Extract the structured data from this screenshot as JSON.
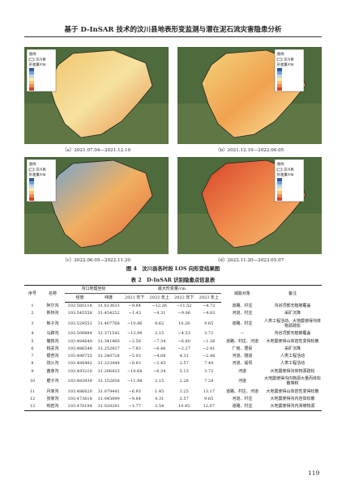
{
  "header": {
    "title": "基于 D-InSAR 技术的汶川县地表形变监测与潜在泥石流灾害隐患分析"
  },
  "figures": [
    {
      "caption": "（a）2021.07.04—2021.12.19",
      "legend_title": "图例",
      "legend_county": "汶川县",
      "legend_unit": "形变量/cm"
    },
    {
      "caption": "（b）2021.12.19—2022.06.05",
      "legend_title": "图例",
      "legend_county": "汶川县",
      "legend_unit": "形变量/cm"
    },
    {
      "caption": "（c）2022.06.05—2022.11.20",
      "legend_title": "图例",
      "legend_county": "汶川县",
      "legend_unit": "形变量/cm"
    },
    {
      "caption": "（d）2022.11.20—2023.05.07",
      "legend_title": "图例",
      "legend_county": "汶川县",
      "legend_unit": "形变量/cm"
    }
  ],
  "figure_caption": "图 4　汶川县各时段 LOS 向形变结果图",
  "table": {
    "caption": "表 2　D-InSAR 识别隐患点信息表",
    "headers": {
      "no": "序号",
      "name": "名称",
      "coord": "沟口地理坐标",
      "lon": "经度",
      "lat": "纬度",
      "deform": "最大形变量/cm",
      "periods": [
        "2021 年下",
        "2022 年上",
        "2022 年下",
        "2023 年上"
      ],
      "threat": "威胁对象",
      "note": "备注"
    },
    "rows": [
      [
        "1",
        "阿尔沟",
        "103.585118",
        "31.613633",
        "−9.84",
        "−12.26",
        "−11.52",
        "−4.72",
        "道路、村庄",
        "沟谷顶部无植被覆盖"
      ],
      [
        "2",
        "新桥沟",
        "103.545558",
        "31.454252",
        "−1.43",
        "−4.31",
        "−9.06",
        "−4.83",
        "河道、村庄",
        "采矿沉降"
      ],
      [
        "3",
        "板子沟",
        "103.529551",
        "31.407768",
        "−10.86",
        "8.62",
        "10.28",
        "9.65",
        "道路、村庄",
        "人类工程活动、大地震使得沟体物源疏松"
      ],
      [
        "4",
        "马蹄沟",
        "103.509884",
        "31.371542",
        "−13.98",
        "2.15",
        "−4.53",
        "3.72",
        "—",
        "沟谷顶部无植被覆盖"
      ],
      [
        "5",
        "簸箕沟",
        "103.484640",
        "31.341460",
        "−2.58",
        "−7.34",
        "−6.80",
        "−1.36",
        "道路、村庄、河道",
        "大地震使得山体岩性变得松散"
      ],
      [
        "6",
        "桃关沟",
        "103.486548",
        "31.252927",
        "−7.83",
        "−6.46",
        "−2.27",
        "−2.41",
        "厂房、居民",
        "采矿沉降"
      ],
      [
        "7",
        "银杏沟",
        "103.490755",
        "31.240728",
        "−5.93",
        "−4.08",
        "4.31",
        "−2.46",
        "河道、隧道",
        "人类工程活动"
      ],
      [
        "8",
        "烧火沟",
        "103.484492",
        "31.223444",
        "−8.83",
        "−2.45",
        "2.57",
        "7.49",
        "河道、堤坝",
        "人类工程活动"
      ],
      [
        "9",
        "茜家沟",
        "103.493210",
        "31.206433",
        "−10.68",
        "−6.34",
        "5.13",
        "3.72",
        "河道",
        "大地震使得沟体物源疏松"
      ],
      [
        "10",
        "磨子沟",
        "103.483939",
        "31.152858",
        "−11.98",
        "2.15",
        "2.26",
        "7.24",
        "河道",
        "大地震使得沟内物源大量而体松散堆积"
      ],
      [
        "11",
        "月家沟",
        "103.486620",
        "31.079441",
        "−6.93",
        "1.45",
        "3.25",
        "13.17",
        "道路、村庄、河道",
        "大地震使得山体岩性变得松散"
      ],
      [
        "12",
        "张家沟",
        "103.473618",
        "31.045099",
        "−9.84",
        "4.31",
        "2.57",
        "9.65",
        "河道、村庄",
        "大地震使得沟内岩体松散"
      ],
      [
        "13",
        "响岩沟",
        "103.470194",
        "31.028281",
        "−1.77",
        "2.54",
        "10.45",
        "12.07",
        "道路、村庄",
        "大地震使得沟内滑坡物源"
      ]
    ]
  },
  "page_number": "119"
}
